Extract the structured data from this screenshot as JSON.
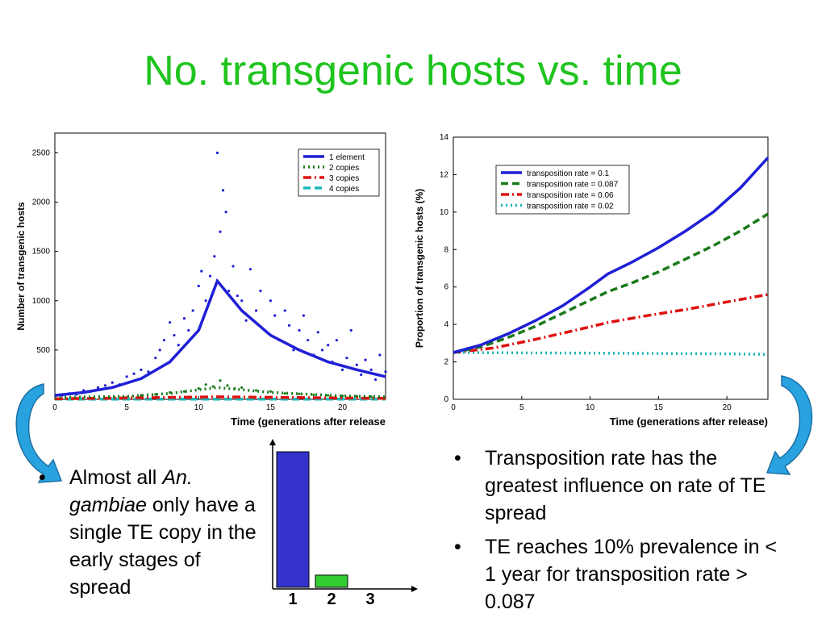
{
  "slide": {
    "title": "No. transgenic hosts vs. time"
  },
  "left_note": {
    "prefix": "Almost all ",
    "species": "An. gambiae",
    "suffix": " only have a single TE copy in the early stages of spread"
  },
  "right_bullets": [
    "Transposition rate has the greatest influence on rate of TE spread",
    "TE reaches 10% prevalence in < 1 year for transposition rate > 0.087"
  ],
  "colors": {
    "title": "#1fc41f",
    "blue": "#1f1fd6",
    "green": "#1a7a1a",
    "red": "#e01010",
    "cyan": "#19b8b8",
    "bar1": "#3333cc",
    "bar2": "#33cc33",
    "arrow": "#29a3e0"
  },
  "chart_data": [
    {
      "type": "scatter",
      "ylabel": "Number of transgenic hosts",
      "xlabel": "Time (generations after release",
      "xlim": [
        0,
        23
      ],
      "ylim": [
        0,
        2700
      ],
      "xticks": [
        0,
        5,
        10,
        15,
        20
      ],
      "yticks": [
        500,
        1000,
        1500,
        2000,
        2500
      ],
      "legend_position": "top-right",
      "series": [
        {
          "name": "1 element",
          "style": "solid",
          "color": "#1f1fd6",
          "line": [
            [
              0,
              40
            ],
            [
              2,
              70
            ],
            [
              4,
              120
            ],
            [
              6,
              210
            ],
            [
              8,
              380
            ],
            [
              10,
              700
            ],
            [
              11.3,
              1200
            ],
            [
              13,
              900
            ],
            [
              15,
              650
            ],
            [
              17,
              500
            ],
            [
              19,
              380
            ],
            [
              21,
              300
            ],
            [
              23,
              230
            ]
          ],
          "points": [
            [
              0.5,
              40
            ],
            [
              1,
              60
            ],
            [
              1.5,
              50
            ],
            [
              2,
              90
            ],
            [
              2.5,
              80
            ],
            [
              3,
              120
            ],
            [
              3.5,
              140
            ],
            [
              4,
              170
            ],
            [
              4.5,
              150
            ],
            [
              5,
              230
            ],
            [
              5.5,
              260
            ],
            [
              6,
              300
            ],
            [
              6.5,
              280
            ],
            [
              7,
              420
            ],
            [
              7.3,
              500
            ],
            [
              7.6,
              600
            ],
            [
              8,
              780
            ],
            [
              8.3,
              650
            ],
            [
              8.6,
              550
            ],
            [
              9,
              820
            ],
            [
              9.3,
              700
            ],
            [
              9.6,
              900
            ],
            [
              10,
              1150
            ],
            [
              10.2,
              1300
            ],
            [
              10.5,
              1000
            ],
            [
              10.8,
              1250
            ],
            [
              11.1,
              1450
            ],
            [
              11.3,
              2500
            ],
            [
              11.5,
              1700
            ],
            [
              11.7,
              2120
            ],
            [
              11.9,
              1900
            ],
            [
              12.1,
              1100
            ],
            [
              12.4,
              1350
            ],
            [
              12.7,
              1050
            ],
            [
              13,
              1000
            ],
            [
              13.3,
              800
            ],
            [
              13.6,
              1320
            ],
            [
              14,
              900
            ],
            [
              14.3,
              1100
            ],
            [
              14.6,
              700
            ],
            [
              15,
              1000
            ],
            [
              15.3,
              850
            ],
            [
              15.6,
              600
            ],
            [
              16,
              900
            ],
            [
              16.3,
              750
            ],
            [
              16.6,
              500
            ],
            [
              17,
              700
            ],
            [
              17.3,
              850
            ],
            [
              17.6,
              600
            ],
            [
              18,
              450
            ],
            [
              18.3,
              680
            ],
            [
              18.6,
              500
            ],
            [
              19,
              550
            ],
            [
              19.3,
              380
            ],
            [
              19.6,
              600
            ],
            [
              20,
              300
            ],
            [
              20.3,
              420
            ],
            [
              20.6,
              700
            ],
            [
              21,
              350
            ],
            [
              21.3,
              250
            ],
            [
              21.6,
              400
            ],
            [
              22,
              300
            ],
            [
              22.3,
              200
            ],
            [
              22.6,
              450
            ],
            [
              23,
              280
            ]
          ]
        },
        {
          "name": "2 copies",
          "style": "dotted",
          "color": "#1a7a1a",
          "line": [
            [
              0,
              20
            ],
            [
              5,
              30
            ],
            [
              8,
              60
            ],
            [
              11.3,
              120
            ],
            [
              15,
              70
            ],
            [
              20,
              35
            ],
            [
              23,
              25
            ]
          ],
          "points": [
            [
              6,
              40
            ],
            [
              7,
              50
            ],
            [
              8,
              70
            ],
            [
              9,
              80
            ],
            [
              10,
              110
            ],
            [
              10.5,
              150
            ],
            [
              11,
              130
            ],
            [
              11.5,
              190
            ],
            [
              12,
              140
            ],
            [
              12.5,
              110
            ],
            [
              13,
              120
            ],
            [
              14,
              90
            ],
            [
              15,
              80
            ],
            [
              16,
              60
            ],
            [
              17,
              55
            ],
            [
              18,
              45
            ],
            [
              19,
              40
            ],
            [
              20,
              35
            ],
            [
              21,
              30
            ],
            [
              22,
              28
            ]
          ]
        },
        {
          "name": "3 copies",
          "style": "dashdot",
          "color": "#e01010",
          "line": [
            [
              0,
              5
            ],
            [
              11.3,
              25
            ],
            [
              23,
              10
            ]
          ],
          "points": []
        },
        {
          "name": "4 copies",
          "style": "dashed",
          "color": "#19b8b8",
          "line": [
            [
              0,
              2
            ],
            [
              23,
              2
            ]
          ],
          "points": []
        }
      ]
    },
    {
      "type": "line",
      "ylabel": "Proportion of transgenic hosts (%)",
      "xlabel": "Time (generations after release)",
      "xlim": [
        0,
        23
      ],
      "ylim": [
        0,
        14
      ],
      "xticks": [
        0,
        5,
        10,
        15,
        20
      ],
      "yticks": [
        0,
        2,
        4,
        6,
        8,
        10,
        12,
        14
      ],
      "legend_position": "top-left",
      "series": [
        {
          "name": "transposition rate = 0.1",
          "style": "solid",
          "color": "#1f1fd6",
          "line": [
            [
              0,
              2.5
            ],
            [
              2,
              2.9
            ],
            [
              4,
              3.5
            ],
            [
              6,
              4.2
            ],
            [
              8,
              5.0
            ],
            [
              10,
              6.0
            ],
            [
              11.3,
              6.7
            ],
            [
              13,
              7.3
            ],
            [
              15,
              8.1
            ],
            [
              17,
              9.0
            ],
            [
              19,
              10.0
            ],
            [
              21,
              11.3
            ],
            [
              23,
              12.9
            ]
          ]
        },
        {
          "name": "transposition rate = 0.087",
          "style": "dashed",
          "color": "#1a7a1a",
          "line": [
            [
              0,
              2.5
            ],
            [
              2,
              2.8
            ],
            [
              4,
              3.3
            ],
            [
              6,
              3.9
            ],
            [
              8,
              4.6
            ],
            [
              10,
              5.3
            ],
            [
              11.3,
              5.75
            ],
            [
              13,
              6.2
            ],
            [
              15,
              6.8
            ],
            [
              17,
              7.5
            ],
            [
              19,
              8.2
            ],
            [
              21,
              9.0
            ],
            [
              23,
              9.9
            ]
          ]
        },
        {
          "name": "transposition rate = 0.06",
          "style": "dashdot",
          "color": "#e01010",
          "line": [
            [
              0,
              2.5
            ],
            [
              3,
              2.75
            ],
            [
              6,
              3.2
            ],
            [
              9,
              3.7
            ],
            [
              11.3,
              4.1
            ],
            [
              14,
              4.45
            ],
            [
              17,
              4.8
            ],
            [
              20,
              5.2
            ],
            [
              23,
              5.6
            ]
          ]
        },
        {
          "name": "transposition rate = 0.02",
          "style": "dotted",
          "color": "#19b8b8",
          "line": [
            [
              0,
              2.5
            ],
            [
              5,
              2.48
            ],
            [
              10,
              2.47
            ],
            [
              15,
              2.45
            ],
            [
              20,
              2.43
            ],
            [
              23,
              2.4
            ]
          ]
        }
      ]
    },
    {
      "type": "bar",
      "categories": [
        "1",
        "2",
        "3"
      ],
      "values": [
        1.0,
        0.09,
        0
      ],
      "colors": [
        "#3333cc",
        "#33cc33",
        "#cccccc"
      ]
    }
  ]
}
